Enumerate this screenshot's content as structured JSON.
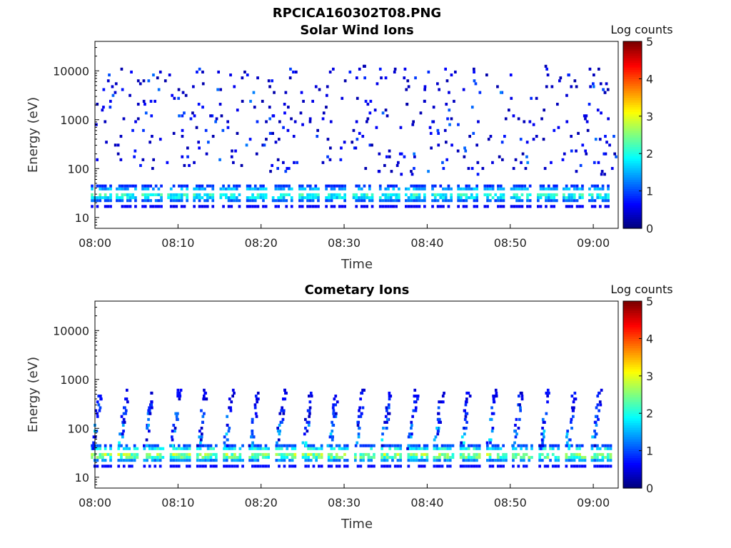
{
  "figure": {
    "title": "RPCICA160302T08.PNG"
  },
  "chart_data": [
    {
      "type": "heatmap",
      "title": "Solar Wind Ions",
      "xlabel": "Time",
      "ylabel": "Energy (eV)",
      "y_scale": "log",
      "ylim": [
        6,
        40000
      ],
      "xlim": [
        "08:00",
        "09:03"
      ],
      "x_ticks": [
        "08:00",
        "08:10",
        "08:20",
        "08:30",
        "08:40",
        "08:50",
        "09:00"
      ],
      "y_ticks": [
        10,
        100,
        1000,
        10000
      ],
      "y_tick_labels": [
        "10",
        "100",
        "1000",
        "10000"
      ],
      "colorbar": {
        "label": "Log counts",
        "range": [
          0,
          5
        ],
        "ticks": [
          "0",
          "1",
          "2",
          "3",
          "4",
          "5"
        ]
      },
      "bursts_minutes": [
        0.5,
        3.5,
        6.6,
        9.7,
        12.8,
        16.0,
        19.2,
        22.3,
        25.5,
        28.7,
        32.0,
        35.2,
        38.3,
        41.5,
        44.6,
        47.8,
        51.0,
        54.2,
        57.3,
        60.4
      ],
      "ion_peak_energy_eV": 30,
      "max_log_counts": 2.0,
      "scatter_energy_range_eV": [
        80,
        12000
      ]
    },
    {
      "type": "heatmap",
      "title": "Cometary Ions",
      "xlabel": "Time",
      "ylabel": "Energy (eV)",
      "y_scale": "log",
      "ylim": [
        6,
        40000
      ],
      "xlim": [
        "08:00",
        "09:03"
      ],
      "x_ticks": [
        "08:00",
        "08:10",
        "08:20",
        "08:30",
        "08:40",
        "08:50",
        "09:00"
      ],
      "y_ticks": [
        10,
        100,
        1000,
        10000
      ],
      "y_tick_labels": [
        "10",
        "100",
        "1000",
        "10000"
      ],
      "colorbar": {
        "label": "Log counts",
        "range": [
          0,
          5
        ],
        "ticks": [
          "0",
          "1",
          "2",
          "3",
          "4",
          "5"
        ]
      },
      "bursts_minutes": [
        0.5,
        3.7,
        6.8,
        10.0,
        13.2,
        16.4,
        19.5,
        22.7,
        25.9,
        29.0,
        32.2,
        35.4,
        38.6,
        41.7,
        44.9,
        48.1,
        51.2,
        54.4,
        57.6,
        60.7
      ],
      "ion_peak_energy_eV": 30,
      "max_log_counts": 2.7,
      "vertical_tail_energy_eV": [
        40,
        600
      ]
    }
  ]
}
